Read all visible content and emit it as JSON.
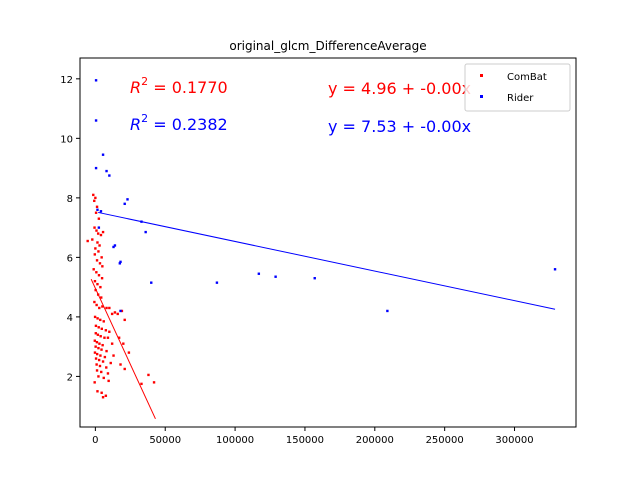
{
  "chart_data": {
    "type": "scatter",
    "title": "original_glcm_DifferenceAverage",
    "xlabel": "",
    "ylabel": "",
    "xlim": [
      -11000,
      344000
    ],
    "ylim": [
      0.3,
      12.7
    ],
    "x_ticks": [
      0,
      50000,
      100000,
      150000,
      200000,
      250000,
      300000
    ],
    "x_tick_labels": [
      "0",
      "50000",
      "100000",
      "150000",
      "200000",
      "250000",
      "300000"
    ],
    "y_ticks": [
      2,
      4,
      6,
      8,
      10,
      12
    ],
    "y_tick_labels": [
      "2",
      "4",
      "6",
      "8",
      "10",
      "12"
    ],
    "grid": false,
    "legend_position": "top-right",
    "series": [
      {
        "name": "ComBat",
        "color": "#ff0000",
        "points": [
          [
            -1500,
            8.1
          ],
          [
            -800,
            7.9
          ],
          [
            0,
            8.0
          ],
          [
            1200,
            7.7
          ],
          [
            500,
            7.5
          ],
          [
            2500,
            7.3
          ],
          [
            -600,
            7.0
          ],
          [
            800,
            6.9
          ],
          [
            2000,
            6.8
          ],
          [
            4000,
            6.75
          ],
          [
            5500,
            6.85
          ],
          [
            -2200,
            6.6
          ],
          [
            1500,
            6.5
          ],
          [
            3000,
            6.4
          ],
          [
            -5500,
            6.55
          ],
          [
            0,
            6.3
          ],
          [
            2200,
            6.2
          ],
          [
            4500,
            6.0
          ],
          [
            -400,
            6.1
          ],
          [
            1200,
            5.9
          ],
          [
            3300,
            5.8
          ],
          [
            5000,
            5.7
          ],
          [
            -1200,
            5.6
          ],
          [
            700,
            5.5
          ],
          [
            2600,
            5.4
          ],
          [
            4800,
            5.3
          ],
          [
            -300,
            5.2
          ],
          [
            1500,
            5.1
          ],
          [
            3600,
            5.0
          ],
          [
            200,
            4.9
          ],
          [
            2000,
            4.75
          ],
          [
            4200,
            4.65
          ],
          [
            -700,
            4.5
          ],
          [
            900,
            4.4
          ],
          [
            2800,
            4.3
          ],
          [
            5000,
            4.35
          ],
          [
            8000,
            4.3
          ],
          [
            10000,
            4.3
          ],
          [
            12000,
            4.1
          ],
          [
            14000,
            4.15
          ],
          [
            16000,
            4.1
          ],
          [
            19000,
            4.2
          ],
          [
            -200,
            4.0
          ],
          [
            1600,
            3.95
          ],
          [
            3500,
            3.9
          ],
          [
            6000,
            3.85
          ],
          [
            21000,
            3.9
          ],
          [
            400,
            3.7
          ],
          [
            2400,
            3.65
          ],
          [
            4600,
            3.6
          ],
          [
            7500,
            3.55
          ],
          [
            10000,
            3.5
          ],
          [
            300,
            3.45
          ],
          [
            1800,
            3.4
          ],
          [
            3800,
            3.35
          ],
          [
            6500,
            3.3
          ],
          [
            9000,
            3.3
          ],
          [
            17000,
            3.3
          ],
          [
            -400,
            3.2
          ],
          [
            1100,
            3.15
          ],
          [
            2900,
            3.1
          ],
          [
            5200,
            3.05
          ],
          [
            12000,
            3.1
          ],
          [
            20000,
            3.1
          ],
          [
            200,
            3.0
          ],
          [
            2200,
            2.95
          ],
          [
            4400,
            2.9
          ],
          [
            8000,
            2.85
          ],
          [
            -300,
            2.8
          ],
          [
            1300,
            2.75
          ],
          [
            3600,
            2.7
          ],
          [
            6800,
            2.65
          ],
          [
            13000,
            2.7
          ],
          [
            24000,
            2.8
          ],
          [
            500,
            2.6
          ],
          [
            2700,
            2.55
          ],
          [
            5500,
            2.5
          ],
          [
            11000,
            2.45
          ],
          [
            900,
            2.4
          ],
          [
            3300,
            2.35
          ],
          [
            7800,
            2.3
          ],
          [
            21000,
            2.25
          ],
          [
            18000,
            2.4
          ],
          [
            1200,
            2.2
          ],
          [
            4200,
            2.15
          ],
          [
            9000,
            2.1
          ],
          [
            38000,
            2.05
          ],
          [
            2200,
            2.0
          ],
          [
            6000,
            1.95
          ],
          [
            42000,
            1.8
          ],
          [
            -500,
            1.8
          ],
          [
            33000,
            1.75
          ],
          [
            9500,
            1.85
          ],
          [
            1500,
            1.5
          ],
          [
            4500,
            1.45
          ],
          [
            7500,
            1.35
          ],
          [
            5500,
            1.3
          ]
        ],
        "fit": {
          "label": "$R^2 = 0.1770$",
          "r2": "R² = 0.1770",
          "equation": "y = 4.96 + -0.00x",
          "intercept": 4.96,
          "slope": -0.000102,
          "x_range": [
            -3000,
            43000
          ]
        }
      },
      {
        "name": "Rider",
        "color": "#0000ff",
        "points": [
          [
            500,
            11.95
          ],
          [
            500,
            10.6
          ],
          [
            5500,
            9.45
          ],
          [
            500,
            9.0
          ],
          [
            8000,
            8.9
          ],
          [
            10000,
            8.75
          ],
          [
            23000,
            7.95
          ],
          [
            21000,
            7.8
          ],
          [
            1500,
            7.6
          ],
          [
            4000,
            7.55
          ],
          [
            33000,
            7.2
          ],
          [
            2500,
            7.0
          ],
          [
            36000,
            6.85
          ],
          [
            14000,
            6.4
          ],
          [
            13000,
            6.35
          ],
          [
            18000,
            5.85
          ],
          [
            17500,
            5.8
          ],
          [
            40000,
            5.15
          ],
          [
            87000,
            5.15
          ],
          [
            117000,
            5.45
          ],
          [
            129000,
            5.35
          ],
          [
            157000,
            5.3
          ],
          [
            209000,
            4.2
          ],
          [
            329000,
            5.6
          ],
          [
            18000,
            4.2
          ]
        ],
        "fit": {
          "r2": "R² = 0.2382",
          "equation": "y = 7.53 + -0.00x",
          "intercept": 7.53,
          "slope": -9.95e-06,
          "x_range": [
            2000,
            329000
          ]
        }
      }
    ]
  },
  "annotations": {
    "combat_r2_prefix": "R",
    "combat_r2_sup": "2",
    "combat_r2_value": " = 0.1770",
    "rider_r2_prefix": "R",
    "rider_r2_sup": "2",
    "rider_r2_value": " = 0.2382",
    "combat_equation": "y = 4.96 + -0.00x",
    "rider_equation": "y = 7.53 + -0.00x"
  },
  "legend": {
    "items": [
      {
        "label": "ComBat",
        "color": "#ff0000"
      },
      {
        "label": "Rider",
        "color": "#0000ff"
      }
    ]
  }
}
